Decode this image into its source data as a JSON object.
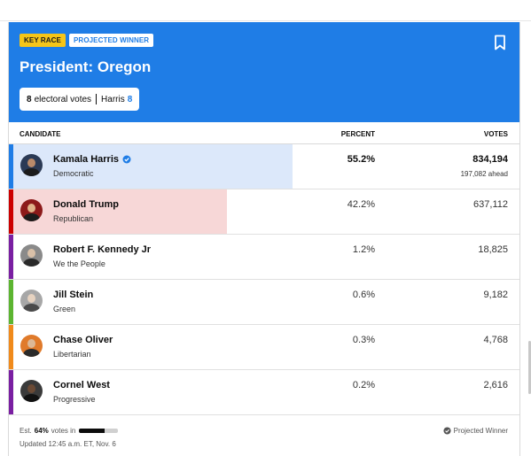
{
  "header": {
    "badge_key": "KEY RACE",
    "badge_winner": "PROJECTED WINNER",
    "title": "President: Oregon",
    "ev_count": "8",
    "ev_label": "electoral votes",
    "ev_candidate": "Harris",
    "ev_won": "8",
    "accent_color": "#1f7de6"
  },
  "columns": {
    "candidate": "CANDIDATE",
    "percent": "PERCENT",
    "votes": "VOTES"
  },
  "candidates": [
    {
      "name": "Kamala Harris",
      "party": "Democratic",
      "percent": "55.2%",
      "votes": "834,194",
      "ahead": "197,082 ahead",
      "winner": true,
      "color": "#1f7de6",
      "fill_color": "#dce8fa",
      "fill_pct": 55.2,
      "icon": "verified-check-icon"
    },
    {
      "name": "Donald Trump",
      "party": "Republican",
      "percent": "42.2%",
      "votes": "637,112",
      "color": "#cc0000",
      "fill_color": "#f7d7d7",
      "fill_pct": 42.2
    },
    {
      "name": "Robert F. Kennedy Jr",
      "party": "We the People",
      "percent": "1.2%",
      "votes": "18,825",
      "color": "#7a1fa2"
    },
    {
      "name": "Jill Stein",
      "party": "Green",
      "percent": "0.6%",
      "votes": "9,182",
      "color": "#5cb531"
    },
    {
      "name": "Chase Oliver",
      "party": "Libertarian",
      "percent": "0.3%",
      "votes": "4,768",
      "color": "#f08a1c"
    },
    {
      "name": "Cornel West",
      "party": "Progressive",
      "percent": "0.2%",
      "votes": "2,616",
      "color": "#7a1fa2"
    }
  ],
  "footer": {
    "est_prefix": "Est.",
    "est_pct": "64%",
    "est_suffix": "votes in",
    "est_fraction": 0.64,
    "updated": "Updated 12:45 a.m. ET, Nov. 6",
    "projected": "Projected Winner"
  }
}
